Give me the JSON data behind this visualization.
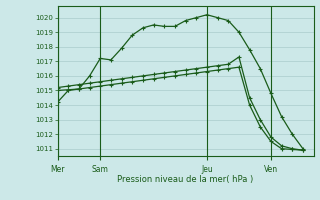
{
  "title": "Pression niveau de la mer( hPa )",
  "background_color": "#cce8e8",
  "grid_color": "#aacccc",
  "line_color": "#1a5c1a",
  "ylim": [
    1010.5,
    1020.8
  ],
  "yticks": [
    1011,
    1012,
    1013,
    1014,
    1015,
    1016,
    1017,
    1018,
    1019,
    1020
  ],
  "day_labels": [
    "Mer",
    "Sam",
    "Jeu",
    "Ven"
  ],
  "day_positions": [
    0,
    4,
    14,
    20
  ],
  "xlim": [
    0,
    24
  ],
  "series1_x": [
    0,
    1,
    2,
    3,
    4,
    5,
    6,
    7,
    8,
    9,
    10,
    11,
    12,
    13,
    14,
    15,
    16,
    17,
    18,
    19,
    20,
    21,
    22,
    23
  ],
  "series1_y": [
    1014.2,
    1015.0,
    1015.1,
    1016.0,
    1017.2,
    1017.1,
    1017.9,
    1018.8,
    1019.3,
    1019.5,
    1019.4,
    1019.4,
    1019.8,
    1020.0,
    1020.2,
    1020.0,
    1019.8,
    1019.0,
    1017.8,
    1016.5,
    1014.8,
    1013.2,
    1012.0,
    1011.0
  ],
  "series2_x": [
    0,
    1,
    2,
    3,
    4,
    5,
    6,
    7,
    8,
    9,
    10,
    11,
    12,
    13,
    14,
    15,
    16,
    17,
    18,
    19,
    20,
    21,
    22,
    23
  ],
  "series2_y": [
    1015.2,
    1015.3,
    1015.4,
    1015.5,
    1015.6,
    1015.7,
    1015.8,
    1015.9,
    1016.0,
    1016.1,
    1016.2,
    1016.3,
    1016.4,
    1016.5,
    1016.6,
    1016.7,
    1016.8,
    1017.3,
    1014.5,
    1013.0,
    1011.8,
    1011.2,
    1011.0,
    1010.9
  ],
  "series3_x": [
    0,
    1,
    2,
    3,
    4,
    5,
    6,
    7,
    8,
    9,
    10,
    11,
    12,
    13,
    14,
    15,
    16,
    17,
    18,
    19,
    20,
    21,
    22,
    23
  ],
  "series3_y": [
    1015.0,
    1015.05,
    1015.1,
    1015.2,
    1015.3,
    1015.4,
    1015.5,
    1015.6,
    1015.7,
    1015.8,
    1015.9,
    1016.0,
    1016.1,
    1016.2,
    1016.3,
    1016.4,
    1016.5,
    1016.6,
    1014.0,
    1012.5,
    1011.5,
    1011.0,
    1010.95,
    1010.9
  ]
}
